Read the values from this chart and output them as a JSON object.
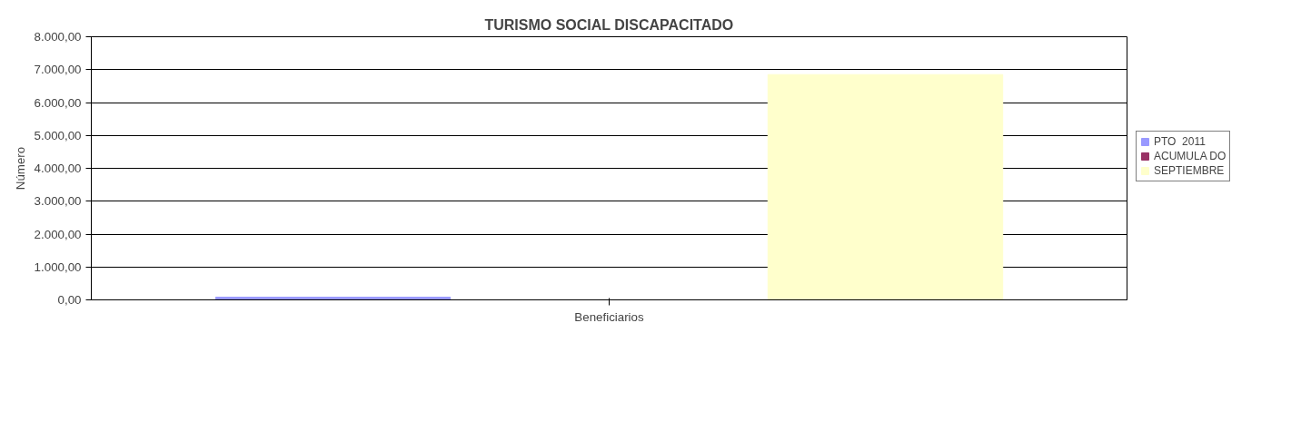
{
  "chart_data": {
    "type": "bar",
    "title": "TURISMO SOCIAL DISCAPACITADO",
    "ylabel": "Número",
    "xlabel": "Beneficiarios",
    "categories": [
      null
    ],
    "series": [
      {
        "name": "PTO  2011",
        "color": "#9999ff",
        "values": [
          80
        ]
      },
      {
        "name": "ACUMULA DO",
        "color": "#993366",
        "values": [
          0
        ]
      },
      {
        "name": "SEPTIEMBRE",
        "color": "#ffffcc",
        "values": [
          6850
        ]
      }
    ],
    "ylim": [
      0,
      8000
    ],
    "yticks": [
      {
        "value": 0,
        "label": "0,00"
      },
      {
        "value": 1000,
        "label": "1.000,00"
      },
      {
        "value": 2000,
        "label": "2.000,00"
      },
      {
        "value": 3000,
        "label": "3.000,00"
      },
      {
        "value": 4000,
        "label": "4.000,00"
      },
      {
        "value": 5000,
        "label": "5.000,00"
      },
      {
        "value": 6000,
        "label": "6.000,00"
      },
      {
        "value": 7000,
        "label": "7.000,00"
      },
      {
        "value": 8000,
        "label": "8.000,00"
      }
    ],
    "grid": "y",
    "legend": "right"
  }
}
